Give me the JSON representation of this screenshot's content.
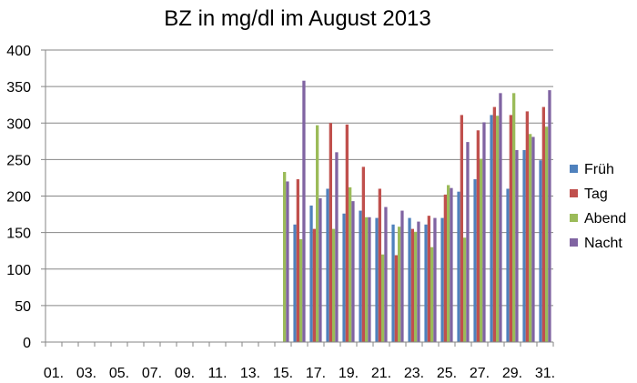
{
  "chart_data": {
    "type": "bar",
    "title": "BZ in mg/dl im August 2013",
    "xlabel": "",
    "ylabel": "",
    "ylim": [
      0,
      400
    ],
    "yticks": [
      0,
      50,
      100,
      150,
      200,
      250,
      300,
      350,
      400
    ],
    "grid": true,
    "legend_position": "right",
    "categories": [
      "01.",
      "02.",
      "03.",
      "04.",
      "05.",
      "06.",
      "07.",
      "08.",
      "09.",
      "10.",
      "11.",
      "12.",
      "13.",
      "14.",
      "15.",
      "16.",
      "17.",
      "18.",
      "19.",
      "20.",
      "21.",
      "22.",
      "23.",
      "24.",
      "25.",
      "26.",
      "27.",
      "28.",
      "29.",
      "30.",
      "31."
    ],
    "x_tick_labels": [
      "01.",
      "03.",
      "05.",
      "07.",
      "09.",
      "11.",
      "13.",
      "15.",
      "17.",
      "19.",
      "21.",
      "23.",
      "25.",
      "27.",
      "29.",
      "31."
    ],
    "series": [
      {
        "name": "Früh",
        "color": "#4F81BD",
        "values": [
          null,
          null,
          null,
          null,
          null,
          null,
          null,
          null,
          null,
          null,
          null,
          null,
          null,
          null,
          null,
          161,
          187,
          210,
          176,
          180,
          170,
          161,
          170,
          161,
          170,
          206,
          223,
          311,
          210,
          263,
          249
        ]
      },
      {
        "name": "Tag",
        "color": "#C0504D",
        "values": [
          null,
          null,
          null,
          null,
          null,
          null,
          null,
          null,
          null,
          null,
          null,
          null,
          null,
          null,
          null,
          223,
          155,
          300,
          298,
          240,
          210,
          119,
          155,
          173,
          202,
          311,
          290,
          322,
          311,
          316,
          322
        ]
      },
      {
        "name": "Abend",
        "color": "#9BBB59",
        "values": [
          null,
          null,
          null,
          null,
          null,
          null,
          null,
          null,
          null,
          null,
          null,
          null,
          null,
          null,
          233,
          141,
          297,
          155,
          212,
          171,
          120,
          158,
          151,
          130,
          215,
          143,
          251,
          310,
          341,
          285,
          295
        ]
      },
      {
        "name": "Nacht",
        "color": "#8064A2",
        "values": [
          null,
          null,
          null,
          null,
          null,
          null,
          null,
          null,
          null,
          null,
          null,
          null,
          null,
          null,
          220,
          358,
          197,
          260,
          193,
          171,
          185,
          180,
          165,
          170,
          211,
          274,
          301,
          341,
          263,
          281,
          345
        ]
      }
    ]
  }
}
